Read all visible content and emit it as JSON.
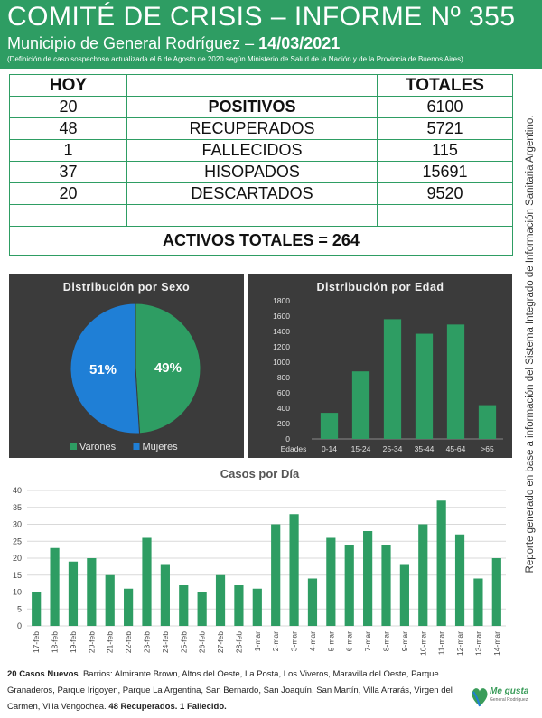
{
  "header": {
    "title": "COMITÉ DE CRISIS – INFORME Nº 355",
    "subtitle_prefix": "Municipio de General Rodríguez –",
    "date": "14/03/2021",
    "note": "(Definición de caso sospechoso actualizada el 6 de Agosto de 2020 según Ministerio de Salud de la Nación y de la Provincia de Buenos Aires)"
  },
  "side_note": "Reporte generado en base a información del Sistema Integrado de Información Sanitaria Argentino.",
  "table": {
    "col_today": "HOY",
    "col_total": "TOTALES",
    "rows": [
      {
        "hoy": "20",
        "label": "POSITIVOS",
        "total": "6100"
      },
      {
        "hoy": "48",
        "label": "RECUPERADOS",
        "total": "5721"
      },
      {
        "hoy": "1",
        "label": "FALLECIDOS",
        "total": "115"
      },
      {
        "hoy": "37",
        "label": "HISOPADOS",
        "total": "15691"
      },
      {
        "hoy": "20",
        "label": "DESCARTADOS",
        "total": "9520"
      }
    ],
    "activos": "ACTIVOS TOTALES = 264"
  },
  "colors": {
    "green": "#2e9d63",
    "blue": "#1f7fd6",
    "orange": "#e28a18",
    "panel": "#3b3b3b"
  },
  "chart_data": [
    {
      "type": "pie",
      "title": "Distribución por Sexo",
      "labels": [
        "Varones",
        "Mujeres"
      ],
      "values": [
        49,
        51
      ],
      "data_labels": [
        "49%",
        "51%"
      ],
      "colors": [
        "#2e9d63",
        "#1f7fd6"
      ],
      "legend": "bottom"
    },
    {
      "type": "bar",
      "title": "Distribución por Edad",
      "categories": [
        "0-14",
        "15-24",
        "25-34",
        "35-44",
        "45-64",
        ">65"
      ],
      "values": [
        340,
        880,
        1560,
        1370,
        1490,
        440
      ],
      "x_axis_caption": "Edades",
      "ylim": [
        0,
        1800
      ],
      "yticks": [
        "0",
        "200",
        "400",
        "600",
        "800",
        "1000",
        "1200",
        "1400",
        "1600",
        "1800"
      ],
      "grid": false
    },
    {
      "type": "bar",
      "title": "Casos por Día",
      "categories": [
        "17-feb",
        "18-feb",
        "19-feb",
        "20-feb",
        "21-feb",
        "22-feb",
        "23-feb",
        "24-feb",
        "25-feb",
        "26-feb",
        "27-feb",
        "28-feb",
        "1-mar",
        "2-mar",
        "3-mar",
        "4-mar",
        "5-mar",
        "6-mar",
        "7-mar",
        "8-mar",
        "9-mar",
        "10-mar",
        "11-mar",
        "12-mar",
        "13-mar",
        "14-mar"
      ],
      "values": [
        10,
        23,
        19,
        20,
        15,
        11,
        26,
        18,
        12,
        10,
        15,
        12,
        11,
        30,
        33,
        14,
        26,
        24,
        28,
        24,
        18,
        30,
        37,
        27,
        14,
        20
      ],
      "ylim": [
        0,
        40
      ],
      "yticks": [
        "0",
        "5",
        "10",
        "15",
        "20",
        "25",
        "30",
        "35",
        "40"
      ],
      "grid": true
    }
  ],
  "footer": {
    "new_cases": "20 Casos Nuevos",
    "barrios": ". Barrios: Almirante Brown, Altos del Oeste, La Posta, Los Viveros, Maravilla del Oeste, Parque Granaderos, Parque Irigoyen, Parque La Argentina, San Bernardo, San Joaquín, San Martín, Villa Arrarás, Virgen del Carmen, Villa Vengochea.",
    "recuperados": "48 Recuperados.",
    "fallecido": "1 Fallecido."
  },
  "logo": {
    "text": "Me gusta",
    "sub": "General Rodríguez"
  }
}
